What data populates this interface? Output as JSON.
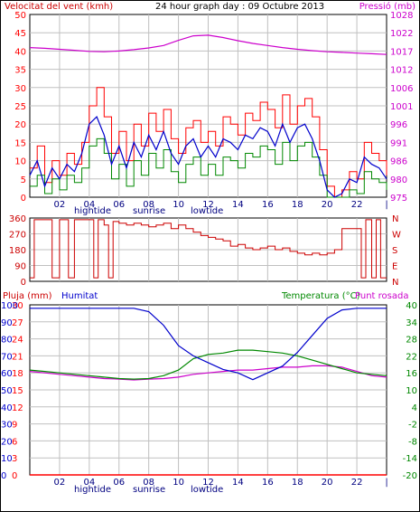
{
  "page": {
    "title": "24 hour graph day : 09 Octubre 2013",
    "tide_labels": {
      "hightide": "hightide",
      "sunrise": "sunrise",
      "lowtide": "lowtide"
    }
  },
  "colors": {
    "wind": "#ff0000",
    "wind_avg": "#0000cc",
    "wind_gust": "#008800",
    "pressure": "#cc00cc",
    "direction": "#cc0000",
    "humidity": "#0000cc",
    "temperature": "#008800",
    "dew_point": "#cc00cc",
    "rain": "#ff0000",
    "grid": "#c0c0c0",
    "frame": "#000000"
  },
  "chart_data": [
    {
      "id": "wind-pressure",
      "type": "line",
      "ylabel_left": "Velocitat del vent (kmh)",
      "ylabel_right": "Pressió (mb)",
      "x_ticks": [
        "02",
        "04",
        "06",
        "08",
        "10",
        "12",
        "14",
        "16",
        "18",
        "20",
        "22",
        "|"
      ],
      "y_left_ticks": [
        "50",
        "45",
        "40",
        "35",
        "30",
        "25",
        "20",
        "15",
        "10",
        "5",
        "0"
      ],
      "y_right_ticks": [
        "1028",
        "1022",
        "1017",
        "1012",
        "1006",
        "1001",
        "996",
        "991",
        "986",
        "980",
        "975"
      ],
      "ylim_left": [
        0,
        50
      ],
      "ylim_right": [
        975,
        1028
      ],
      "series": [
        {
          "name": "Pressió (mb)",
          "axis": "right",
          "x": [
            0,
            1,
            2,
            3,
            4,
            5,
            6,
            7,
            8,
            9,
            10,
            11,
            12,
            13,
            14,
            15,
            16,
            17,
            18,
            19,
            20,
            21,
            22,
            23,
            24
          ],
          "y": [
            1018.4,
            1018.2,
            1017.9,
            1017.6,
            1017.3,
            1017.2,
            1017.4,
            1017.8,
            1018.3,
            1019.0,
            1020.5,
            1021.8,
            1022.0,
            1021.3,
            1020.4,
            1019.6,
            1019.0,
            1018.4,
            1017.9,
            1017.5,
            1017.2,
            1017.0,
            1016.8,
            1016.6,
            1016.4
          ]
        },
        {
          "name": "",
          "axis": "left",
          "x": [
            0,
            0.5,
            1,
            1.5,
            2,
            2.5,
            3,
            3.5,
            4,
            4.5,
            5,
            5.5,
            6,
            6.5,
            7,
            7.5,
            8,
            8.5,
            9,
            9.5,
            10,
            10.5,
            11,
            11.5,
            12,
            12.5,
            13,
            13.5,
            14,
            14.5,
            15,
            15.5,
            16,
            16.5,
            17,
            17.5,
            18,
            18.5,
            19,
            19.5,
            20,
            20.5,
            21,
            21.5,
            22,
            22.5,
            23,
            23.5,
            24
          ],
          "y": [
            8,
            14,
            4,
            10,
            6,
            12,
            9,
            15,
            25,
            30,
            22,
            12,
            18,
            10,
            20,
            14,
            23,
            18,
            24,
            16,
            12,
            19,
            21,
            15,
            18,
            14,
            22,
            20,
            17,
            23,
            21,
            26,
            24,
            19,
            28,
            20,
            25,
            27,
            22,
            13,
            3,
            0,
            2,
            7,
            5,
            15,
            12,
            10,
            6
          ]
        },
        {
          "name": "",
          "axis": "left",
          "x": [
            0,
            0.5,
            1,
            1.5,
            2,
            2.5,
            3,
            3.5,
            4,
            4.5,
            5,
            5.5,
            6,
            6.5,
            7,
            7.5,
            8,
            8.5,
            9,
            9.5,
            10,
            10.5,
            11,
            11.5,
            12,
            12.5,
            13,
            13.5,
            14,
            14.5,
            15,
            15.5,
            16,
            16.5,
            17,
            17.5,
            18,
            18.5,
            19,
            19.5,
            20,
            20.5,
            21,
            21.5,
            22,
            22.5,
            23,
            23.5,
            24
          ],
          "y": [
            6,
            10,
            3,
            8,
            5,
            9,
            7,
            12,
            20,
            22,
            17,
            9,
            14,
            8,
            15,
            11,
            17,
            13,
            18,
            12,
            9,
            14,
            16,
            11,
            14,
            11,
            16,
            15,
            13,
            17,
            16,
            19,
            18,
            14,
            20,
            15,
            19,
            20,
            16,
            10,
            2,
            0,
            1,
            5,
            4,
            11,
            9,
            8,
            5
          ]
        },
        {
          "name": "",
          "axis": "left",
          "x": [
            0,
            0.5,
            1,
            1.5,
            2,
            2.5,
            3,
            3.5,
            4,
            4.5,
            5,
            5.5,
            6,
            6.5,
            7,
            7.5,
            8,
            8.5,
            9,
            9.5,
            10,
            10.5,
            11,
            11.5,
            12,
            12.5,
            13,
            13.5,
            14,
            14.5,
            15,
            15.5,
            16,
            16.5,
            17,
            17.5,
            18,
            18.5,
            19,
            19.5,
            20,
            20.5,
            21,
            21.5,
            22,
            22.5,
            23,
            23.5,
            24
          ],
          "y": [
            3,
            6,
            1,
            5,
            2,
            6,
            4,
            8,
            14,
            16,
            12,
            5,
            9,
            3,
            10,
            6,
            12,
            8,
            13,
            7,
            4,
            9,
            11,
            6,
            9,
            6,
            11,
            10,
            8,
            12,
            11,
            14,
            13,
            9,
            15,
            10,
            14,
            15,
            11,
            6,
            0,
            0,
            0,
            2,
            1,
            7,
            5,
            4,
            2
          ]
        }
      ]
    },
    {
      "id": "direction",
      "type": "line",
      "x_ticks": [],
      "y_left_ticks": [
        "360",
        "270",
        "180",
        "90",
        "0"
      ],
      "y_right_ticks": [
        "N",
        "W",
        "S",
        "E",
        "N"
      ],
      "ylim_left": [
        0,
        360
      ],
      "series": [
        {
          "name": "",
          "x": [
            0,
            0.3,
            0.6,
            1,
            1.5,
            2,
            2.4,
            2.6,
            3,
            3.5,
            4,
            4.3,
            4.6,
            5,
            5.3,
            5.6,
            6,
            6.5,
            7,
            7.5,
            8,
            8.5,
            9,
            9.5,
            10,
            10.5,
            11,
            11.5,
            12,
            12.5,
            13,
            13.5,
            14,
            14.5,
            15,
            15.5,
            16,
            16.5,
            17,
            17.5,
            18,
            18.5,
            19,
            19.5,
            20,
            20.5,
            21,
            21.5,
            22,
            22.3,
            22.6,
            23,
            23.3,
            23.6,
            24
          ],
          "y": [
            20,
            350,
            350,
            350,
            20,
            350,
            350,
            20,
            350,
            350,
            350,
            20,
            350,
            320,
            20,
            340,
            330,
            320,
            330,
            320,
            310,
            320,
            330,
            300,
            320,
            300,
            280,
            260,
            250,
            240,
            230,
            200,
            210,
            190,
            180,
            190,
            200,
            180,
            190,
            170,
            160,
            150,
            160,
            150,
            160,
            180,
            300,
            300,
            300,
            20,
            350,
            20,
            350,
            20,
            20
          ]
        }
      ]
    },
    {
      "id": "temp-hum",
      "type": "line",
      "ylabel_rain": "Pluja (mm)",
      "ylabel_humidity": "Humitat",
      "ylabel_temperature": "Temperatura (°C)",
      "ylabel_dewpoint": "Punt rosada",
      "x_ticks": [
        "02",
        "04",
        "06",
        "08",
        "10",
        "12",
        "14",
        "16",
        "18",
        "20",
        "22",
        "|"
      ],
      "y_rain_ticks": [
        "30",
        "27",
        "24",
        "21",
        "18",
        "15",
        "12",
        "9",
        "6",
        "3",
        "0"
      ],
      "y_humidity_ticks": [
        "100",
        "90",
        "80",
        "70",
        "60",
        "50",
        "40",
        "30",
        "20",
        "10",
        "0"
      ],
      "y_right_ticks": [
        "40",
        "34",
        "28",
        "22",
        "16",
        "10",
        "4",
        "-2",
        "-8",
        "-14",
        "-20"
      ],
      "ylim_humidity": [
        0,
        100
      ],
      "ylim_temperature": [
        -20,
        40
      ],
      "ylim_rain": [
        0,
        30
      ],
      "series": [
        {
          "name": "Humitat",
          "axis": "humidity",
          "x": [
            0,
            1,
            2,
            3,
            4,
            5,
            6,
            7,
            8,
            9,
            10,
            11,
            12,
            13,
            14,
            15,
            16,
            17,
            18,
            19,
            20,
            21,
            22,
            23,
            24
          ],
          "y": [
            98,
            98,
            98,
            98,
            98,
            98,
            98,
            98,
            96,
            88,
            76,
            70,
            66,
            62,
            60,
            56,
            60,
            64,
            72,
            82,
            92,
            97,
            98,
            98,
            98
          ]
        },
        {
          "name": "Temperatura (°C)",
          "axis": "temperature",
          "x": [
            0,
            1,
            2,
            3,
            4,
            5,
            6,
            7,
            8,
            9,
            10,
            11,
            12,
            13,
            14,
            15,
            16,
            17,
            18,
            19,
            20,
            21,
            22,
            23,
            24
          ],
          "y": [
            17,
            16.5,
            16,
            15.5,
            15,
            14.5,
            14,
            13.8,
            14,
            15,
            17,
            21,
            22.5,
            23,
            24,
            24,
            23.5,
            23,
            22,
            20.5,
            19,
            17.5,
            16,
            15.5,
            15
          ]
        },
        {
          "name": "Punt rosada",
          "axis": "temperature",
          "x": [
            0,
            1,
            2,
            3,
            4,
            5,
            6,
            7,
            8,
            9,
            10,
            11,
            12,
            13,
            14,
            15,
            16,
            17,
            18,
            19,
            20,
            21,
            22,
            23,
            24
          ],
          "y": [
            16.5,
            16,
            15.5,
            15,
            14.5,
            14,
            13.8,
            13.5,
            13.8,
            14,
            14.5,
            15.5,
            16,
            16.5,
            17,
            17,
            17.5,
            18,
            18,
            18.5,
            18.5,
            18,
            16.5,
            15,
            14.5
          ]
        },
        {
          "name": "Pluja (mm)",
          "axis": "rain",
          "x": [
            0,
            24
          ],
          "y": [
            0,
            0
          ]
        }
      ]
    }
  ]
}
